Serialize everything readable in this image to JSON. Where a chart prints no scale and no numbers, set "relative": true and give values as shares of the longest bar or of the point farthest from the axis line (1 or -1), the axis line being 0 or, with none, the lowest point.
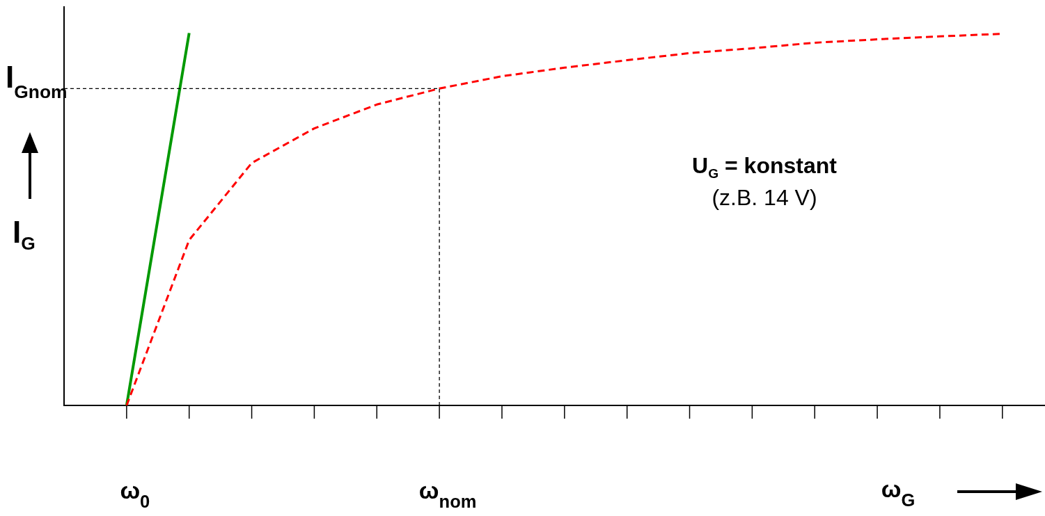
{
  "chart_data": {
    "type": "line",
    "relative": true,
    "marker": "none",
    "xlabel": "ω$_{G}$",
    "ylabel": "I$_{G}$",
    "categories": [
      null,
      "ω$_{0}$",
      null,
      null,
      null,
      null,
      "ω$_{nom}$",
      null,
      null,
      null,
      null,
      null,
      null,
      null,
      null,
      null
    ],
    "annotations": [
      "U$_{G}$ = konstant",
      "(z.B. 14 V)"
    ],
    "ref_lines": [
      {
        "axis": "y",
        "value": 0.851,
        "label": "I$_{Gnom}$",
        "color": "#000000",
        "line_style": "dashed"
      },
      {
        "axis": "x",
        "value": "ω$_{nom}$",
        "color": "#000000",
        "line_style": "dashed"
      }
    ],
    "series": [
      {
        "color": "#ff0000",
        "line_style": "dashed",
        "values": [
          null,
          0,
          0.444,
          0.651,
          0.744,
          0.808,
          0.851,
          0.884,
          0.907,
          0.927,
          0.946,
          0.959,
          0.974,
          0.983,
          0.991,
          0.998
        ]
      },
      {
        "color": "#009900",
        "line_style": "solid",
        "values": [
          null,
          0,
          1,
          null,
          null,
          null,
          null,
          null,
          null,
          null,
          null,
          null,
          null,
          null,
          null,
          null
        ]
      }
    ]
  }
}
